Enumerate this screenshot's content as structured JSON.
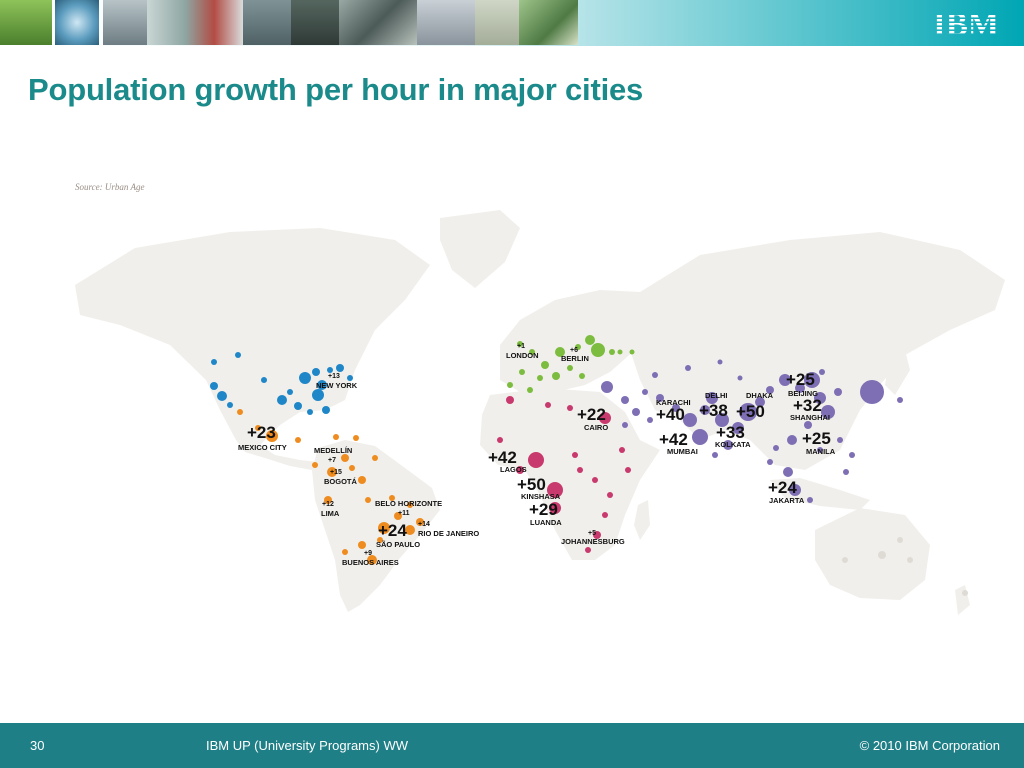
{
  "slide": {
    "title": "Population growth per hour in major cities",
    "source": "Source: Urban Age",
    "brand": "IBM",
    "page_number": "30",
    "footer_center": "IBM UP (University Programs) WW",
    "footer_right": "© 2010 IBM Corporation"
  },
  "colors": {
    "accent_title": "#1a8a8a",
    "footer_bg": "#1f7f86",
    "north_america": "#1f87c8",
    "latin_america": "#ef8c1f",
    "europe": "#7cbc3e",
    "africa": "#c8396d",
    "asia": "#7e6fb4",
    "land": "#f1efeb"
  },
  "cities": [
    {
      "name": "NEW YORK",
      "growth": "+13",
      "region": "north_america"
    },
    {
      "name": "MEXICO CITY",
      "growth": "+23",
      "region": "latin_america"
    },
    {
      "name": "MEDELLÍN",
      "growth": "+7",
      "region": "latin_america"
    },
    {
      "name": "BOGOTÁ",
      "growth": "+15",
      "region": "latin_america"
    },
    {
      "name": "LIMA",
      "growth": "+12",
      "region": "latin_america"
    },
    {
      "name": "BELO HORIZONTE",
      "growth": "+11",
      "region": "latin_america"
    },
    {
      "name": "RIO DE JANEIRO",
      "growth": "+14",
      "region": "latin_america"
    },
    {
      "name": "SÃO PAULO",
      "growth": "+24",
      "region": "latin_america"
    },
    {
      "name": "BUENOS AIRES",
      "growth": "+9",
      "region": "latin_america"
    },
    {
      "name": "LONDON",
      "growth": "+1",
      "region": "europe"
    },
    {
      "name": "BERLIN",
      "growth": "+6",
      "region": "europe"
    },
    {
      "name": "CAIRO",
      "growth": "+22",
      "region": "africa"
    },
    {
      "name": "LAGOS",
      "growth": "+42",
      "region": "africa"
    },
    {
      "name": "KINSHASA",
      "growth": "+50",
      "region": "africa"
    },
    {
      "name": "LUANDA",
      "growth": "+29",
      "region": "africa"
    },
    {
      "name": "JOHANNESBURG",
      "growth": "+5",
      "region": "africa"
    },
    {
      "name": "KARACHI",
      "growth": "+40",
      "region": "asia"
    },
    {
      "name": "DELHI",
      "growth": "+38",
      "region": "asia"
    },
    {
      "name": "DHAKA",
      "growth": "+50",
      "region": "asia"
    },
    {
      "name": "BEIJING",
      "growth": "+25",
      "region": "asia"
    },
    {
      "name": "SHANGHAI",
      "growth": "+32",
      "region": "asia"
    },
    {
      "name": "MUMBAI",
      "growth": "+42",
      "region": "asia"
    },
    {
      "name": "KOLKATA",
      "growth": "+33",
      "region": "asia"
    },
    {
      "name": "MANILA",
      "growth": "+25",
      "region": "asia"
    },
    {
      "name": "JAKARTA",
      "growth": "+24",
      "region": "asia"
    }
  ]
}
